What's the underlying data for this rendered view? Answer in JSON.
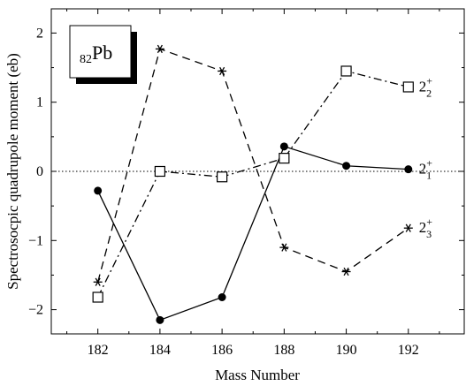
{
  "chart_data": {
    "type": "line",
    "xlabel": "Mass Number",
    "ylabel": "Spectrosocpic quadrupole moment (eb)",
    "xlim": [
      180.5,
      193.8
    ],
    "ylim": [
      -2.35,
      2.35
    ],
    "xticks": [
      182,
      184,
      186,
      188,
      190,
      192
    ],
    "xtick_labels": [
      "182",
      "184",
      "186",
      "188",
      "190",
      "192"
    ],
    "yticks": [
      -2,
      -1,
      0,
      1,
      2
    ],
    "ytick_labels": [
      "−2",
      "−1",
      "0",
      "1",
      "2"
    ],
    "zero_line": true,
    "grid": false,
    "inset_label": {
      "subscript": "82",
      "symbol": "Pb"
    },
    "series": [
      {
        "label_base": "2",
        "label_sub": "2",
        "label_sup": "+",
        "marker": "square",
        "line_style": "dash-dot",
        "x": [
          182,
          184,
          186,
          188,
          190,
          192
        ],
        "values": [
          -1.82,
          0.0,
          -0.08,
          0.19,
          1.45,
          1.22
        ]
      },
      {
        "label_base": "2",
        "label_sub": "1",
        "label_sup": "+",
        "marker": "circle",
        "line_style": "solid",
        "x": [
          182,
          184,
          186,
          188,
          190,
          192
        ],
        "values": [
          -0.28,
          -2.15,
          -1.82,
          0.36,
          0.08,
          0.03
        ]
      },
      {
        "label_base": "2",
        "label_sub": "3",
        "label_sup": "+",
        "marker": "star",
        "line_style": "dashed",
        "x": [
          182,
          184,
          186,
          188,
          190,
          192
        ],
        "values": [
          -1.6,
          1.77,
          1.45,
          -1.1,
          -1.45,
          -0.82
        ]
      }
    ]
  }
}
